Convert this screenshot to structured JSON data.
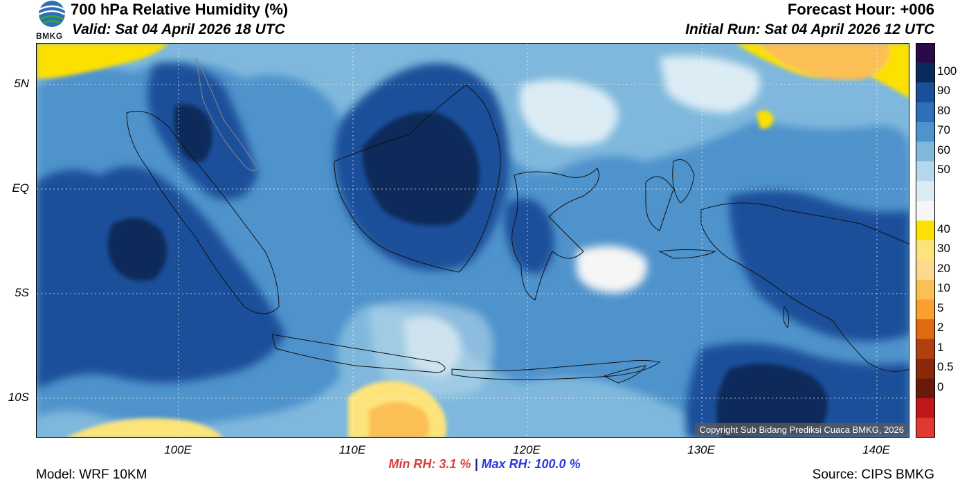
{
  "header": {
    "title": "700 hPa Relative Humidity (%)",
    "valid": "Valid: Sat 04 April 2026 18 UTC",
    "forecast_hour": "Forecast Hour: +006",
    "initial_run": "Initial Run: Sat 04 April 2026 12 UTC",
    "logo_text": "BMKG"
  },
  "map": {
    "lat_labels": [
      "5N",
      "EQ",
      "5S",
      "10S"
    ],
    "lon_labels": [
      "100E",
      "110E",
      "120E",
      "130E",
      "140E"
    ],
    "copyright": "Copyright Sub Bidang Prediksi Cuaca BMKG, 2026"
  },
  "stats": {
    "min_rh": "Min RH:   3.1 %",
    "separator": "|",
    "max_rh": "Max RH: 100.0 %"
  },
  "footer": {
    "model": "Model: WRF 10KM",
    "source": "Source: CIPS BMKG"
  },
  "colorbar": {
    "labels": [
      "100",
      "90",
      "80",
      "70",
      "60",
      "50",
      "40",
      "30",
      "20",
      "10",
      "5",
      "2",
      "1",
      "0.5",
      "0"
    ],
    "colors_top_to_bottom": [
      "#2a0a4a",
      "#0a2a5a",
      "#1a4f9a",
      "#2f6fb8",
      "#4f93cc",
      "#7fb8dc",
      "#b6d7eb",
      "#dcecf5",
      "#f6f6f6",
      "#fce000",
      "#fde47a",
      "#fdd88f",
      "#fbbf55",
      "#f9a030",
      "#e06a10",
      "#b04010",
      "#8a2a0a",
      "#6a1a0a",
      "#c01818",
      "#e03a30"
    ]
  },
  "palette": {
    "deep": "#0a2a5a",
    "dark": "#1a4f9a",
    "mid": "#2f6fb8",
    "medium": "#4f93cc",
    "light": "#7fb8dc",
    "pale": "#b6d7eb",
    "paler": "#dcecf5",
    "white": "#f6f6f6",
    "yellow": "#fce000",
    "lightyellow": "#fde47a",
    "orange": "#fbbf55"
  }
}
